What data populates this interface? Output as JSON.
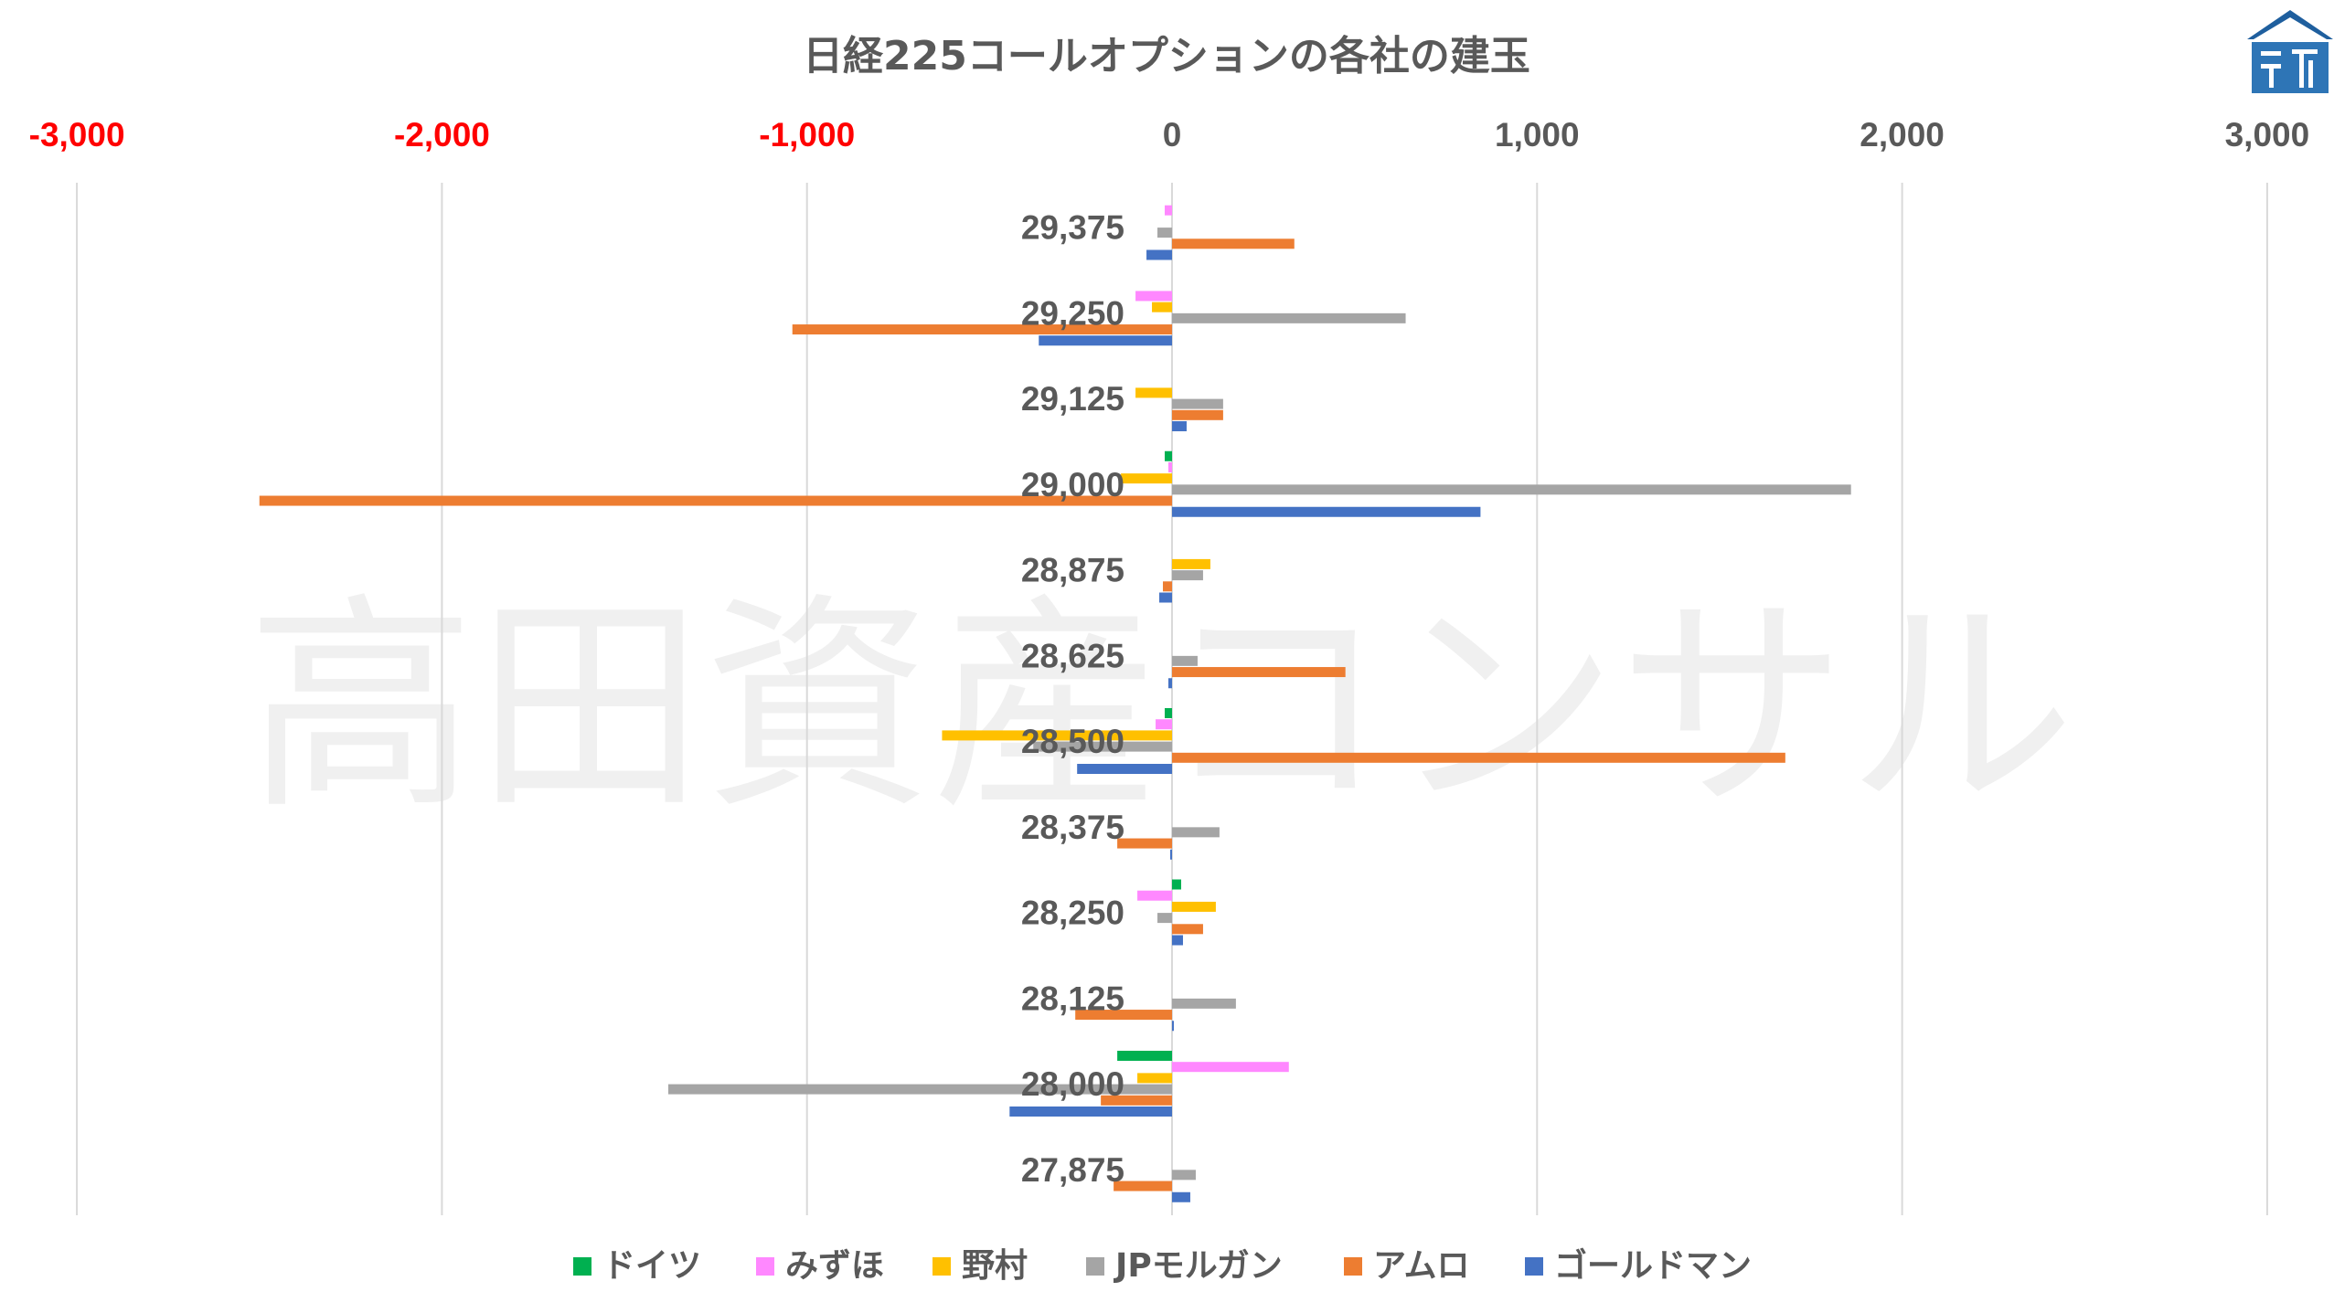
{
  "chart_data": {
    "type": "bar",
    "orientation": "horizontal",
    "title": "日経225コールオプションの各社の建玉",
    "watermark": "高田資産コンサル",
    "xlim": [
      -3000,
      3000
    ],
    "xticks": [
      -3000,
      -2000,
      -1000,
      0,
      1000,
      2000,
      3000
    ],
    "xtick_labels": [
      "-3,000",
      "-2,000",
      "-1,000",
      "0",
      "1,000",
      "2,000",
      "3,000"
    ],
    "negative_tick_color": "#ff0000",
    "positive_tick_color": "#595959",
    "grid": true,
    "legend_position": "bottom",
    "categories": [
      "29,375",
      "29,250",
      "29,125",
      "29,000",
      "28,875",
      "28,625",
      "28,500",
      "28,375",
      "28,250",
      "28,125",
      "28,000",
      "27,875"
    ],
    "series": [
      {
        "name": "ドイツ",
        "color": "#00b050",
        "values": [
          0,
          0,
          0,
          -20,
          0,
          0,
          -20,
          0,
          25,
          0,
          -150,
          0
        ]
      },
      {
        "name": "みずほ",
        "color": "#ff88ff",
        "values": [
          -20,
          -100,
          0,
          -10,
          0,
          0,
          -45,
          0,
          -95,
          0,
          320,
          0
        ]
      },
      {
        "name": "野村",
        "color": "#ffc000",
        "values": [
          0,
          -55,
          -100,
          -140,
          105,
          0,
          -630,
          0,
          120,
          0,
          -95,
          0
        ]
      },
      {
        "name": "JPモルガン",
        "color": "#a5a5a5",
        "values": [
          -40,
          640,
          140,
          1860,
          85,
          70,
          -380,
          130,
          -40,
          175,
          -1380,
          65
        ]
      },
      {
        "name": "アムロ",
        "color": "#ed7d31",
        "values": [
          335,
          -1040,
          140,
          -2500,
          -25,
          475,
          1680,
          -150,
          85,
          -265,
          -195,
          -160
        ]
      },
      {
        "name": "ゴールドマン",
        "color": "#4472c4",
        "values": [
          -70,
          -365,
          40,
          845,
          -35,
          -10,
          -260,
          -5,
          30,
          5,
          -445,
          50
        ]
      }
    ]
  }
}
